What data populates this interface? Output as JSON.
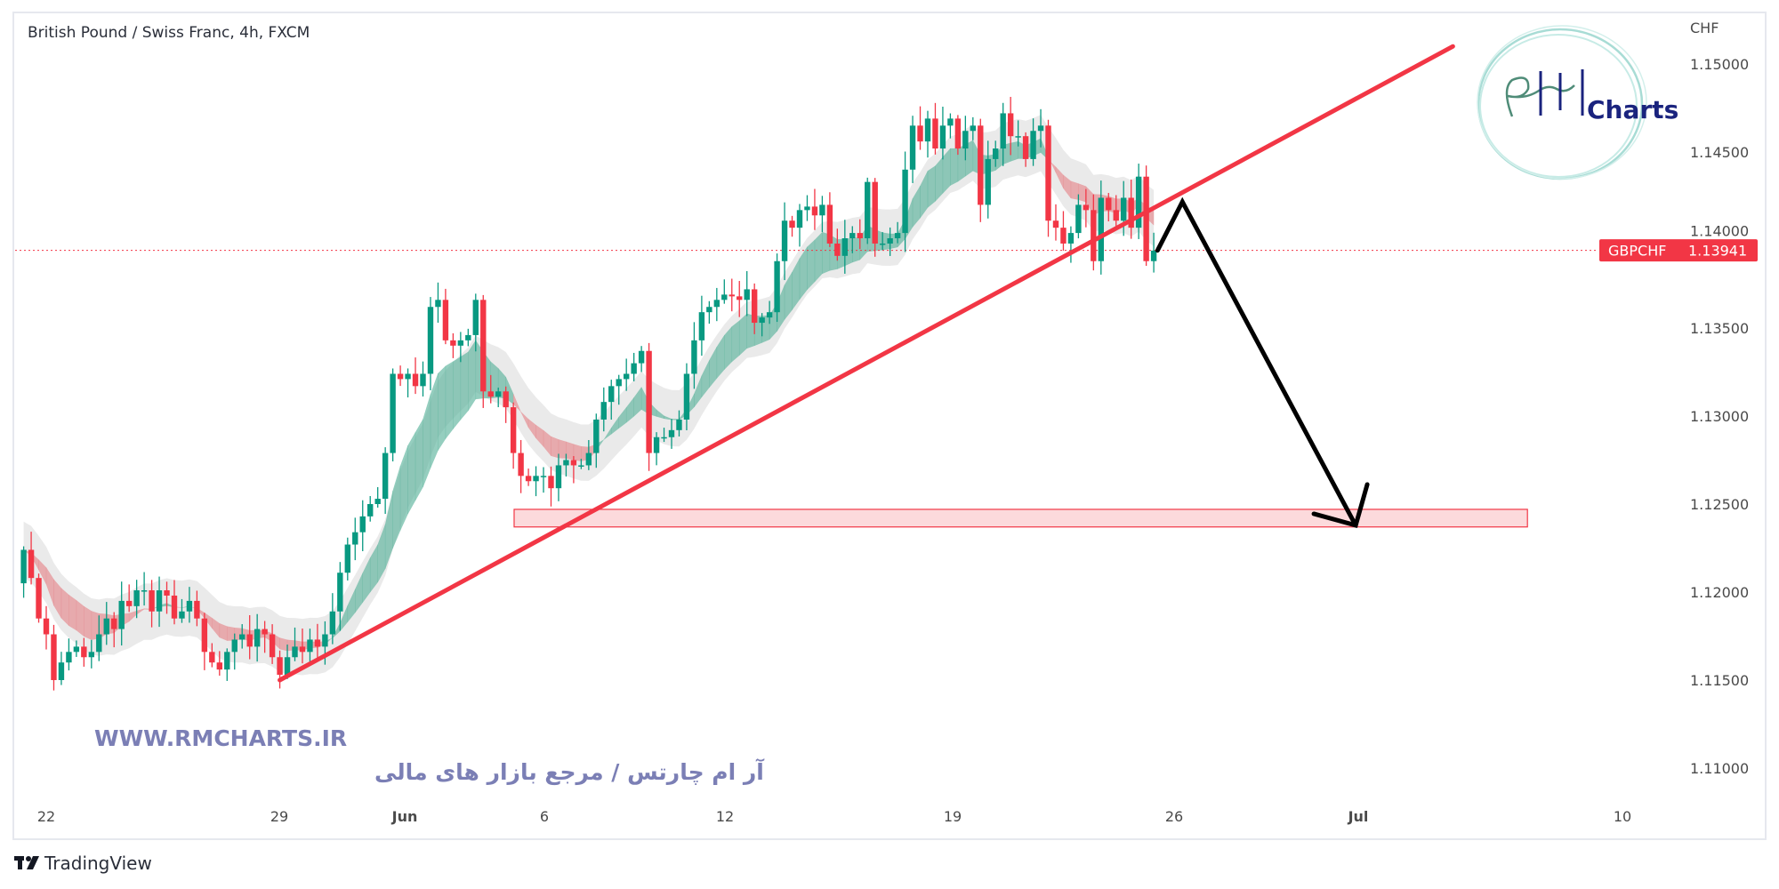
{
  "header": {
    "title": "British Pound / Swiss Franc, 4h, FXCM"
  },
  "price_axis": {
    "currency": "CHF",
    "ticks": [
      "1.15000",
      "1.14500",
      "1.14000",
      "1.13500",
      "1.13000",
      "1.12500",
      "1.12000",
      "1.11500",
      "1.11000"
    ]
  },
  "time_axis": {
    "ticks": [
      "22",
      "29",
      "Jun",
      "6",
      "12",
      "19",
      "26",
      "Jul",
      "10"
    ]
  },
  "current_price": {
    "symbol": "GBPCHF",
    "value": "1.13941"
  },
  "watermark": {
    "url": "WWW.RMCHARTS.IR",
    "tagline": "آر ام چارتس / مرجع بازار های مالی",
    "logo_text": "Charts"
  },
  "footer": {
    "brand": "TradingView"
  },
  "colors": {
    "up": "#089981",
    "down": "#f23645",
    "trendline": "#f23645",
    "zone_fill": "#fbd3d6",
    "zone_border": "#f23645",
    "projection": "#000000",
    "watermark": "#7b7fb5",
    "logo_navy": "#1a237e",
    "logo_ring": "#a8dcd5"
  },
  "chart_data": {
    "type": "candlestick",
    "symbol": "GBPCHF",
    "interval": "4h",
    "ylim": [
      1.108,
      1.1525
    ],
    "grid": false,
    "close": [
      1.1224,
      1.1208,
      1.1185,
      1.1176,
      1.115,
      1.116,
      1.1166,
      1.1169,
      1.1163,
      1.1166,
      1.1176,
      1.1185,
      1.1179,
      1.1195,
      1.1192,
      1.1201,
      1.1201,
      1.1189,
      1.1201,
      1.1198,
      1.1185,
      1.1189,
      1.1195,
      1.1185,
      1.1166,
      1.116,
      1.1156,
      1.1166,
      1.1173,
      1.1176,
      1.1169,
      1.1179,
      1.1176,
      1.1163,
      1.1153,
      1.1163,
      1.1169,
      1.1166,
      1.1173,
      1.1169,
      1.1176,
      1.1189,
      1.1211,
      1.1227,
      1.1234,
      1.1243,
      1.125,
      1.1253,
      1.1279,
      1.1324,
      1.1321,
      1.1324,
      1.1317,
      1.1324,
      1.1362,
      1.1366,
      1.1343,
      1.134,
      1.1343,
      1.1346,
      1.1366,
      1.1314,
      1.1311,
      1.1314,
      1.1305,
      1.1279,
      1.1266,
      1.1263,
      1.1266,
      1.1266,
      1.1259,
      1.1272,
      1.1275,
      1.1272,
      1.1272,
      1.1279,
      1.1298,
      1.1308,
      1.1317,
      1.1321,
      1.1324,
      1.133,
      1.1337,
      1.1279,
      1.1288,
      1.1288,
      1.1292,
      1.1298,
      1.1324,
      1.1343,
      1.1359,
      1.1362,
      1.1366,
      1.1369,
      1.1368,
      1.1366,
      1.1372,
      1.1353,
      1.1356,
      1.1359,
      1.1388,
      1.1411,
      1.1407,
      1.1417,
      1.1419,
      1.1414,
      1.142,
      1.1398,
      1.1391,
      1.1401,
      1.1404,
      1.1401,
      1.1433,
      1.1398,
      1.1398,
      1.1401,
      1.1404,
      1.144,
      1.1465,
      1.1456,
      1.1469,
      1.1452,
      1.1465,
      1.1469,
      1.1452,
      1.1462,
      1.1465,
      1.142,
      1.1446,
      1.1452,
      1.1472,
      1.1459,
      1.1459,
      1.1446,
      1.1462,
      1.1465,
      1.1411,
      1.1407,
      1.1398,
      1.1404,
      1.142,
      1.1417,
      1.1388,
      1.1424,
      1.1417,
      1.1411,
      1.1424,
      1.1407,
      1.1436,
      1.1388,
      1.1394
    ],
    "annotations": {
      "trendline": {
        "start": {
          "bar": 31,
          "price": 1.115
        },
        "end": {
          "bar": 186.7,
          "price": 1.151
        }
      },
      "support_zone": {
        "from_bar": 62.1,
        "to_bar": 196.6,
        "price_low": 1.1237,
        "price_high": 1.1247
      },
      "projection_path": [
        {
          "bar": 147.5,
          "price": 1.13941
        },
        {
          "bar": 150.8,
          "price": 1.14217
        },
        {
          "bar": 173.8,
          "price": 1.12379
        }
      ]
    }
  }
}
